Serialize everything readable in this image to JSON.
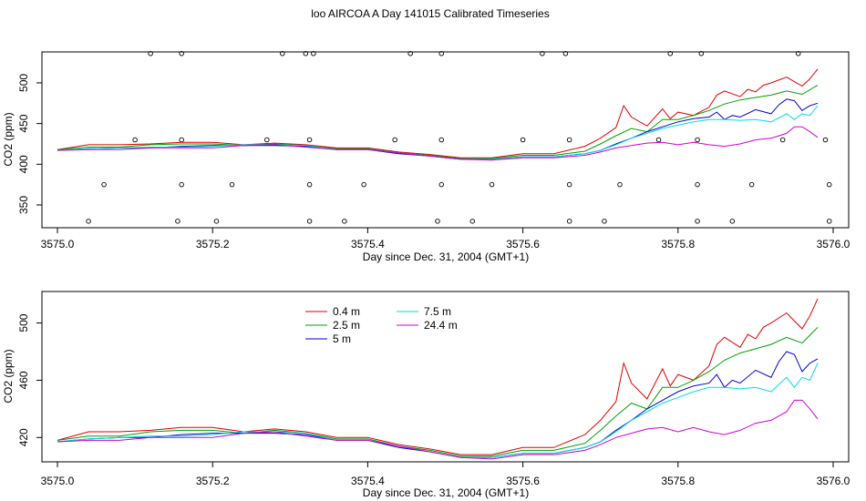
{
  "title": "loo AIRCOA A  Day 141015  Calibrated Timeseries",
  "colors": {
    "0.4 m": "#e00000",
    "2.5 m": "#00a000",
    "5 m": "#0000c8",
    "7.5 m": "#00dede",
    "24.4 m": "#d000d0"
  },
  "chart_data": [
    {
      "type": "line",
      "xlabel": "Day since Dec. 31, 2004 (GMT+1)",
      "ylabel": "CO2 (ppm)",
      "xlim": [
        3574.98,
        3576.02
      ],
      "ylim": [
        322,
        538
      ],
      "xticks": [
        "3575.0",
        "3575.2",
        "3575.4",
        "3575.6",
        "3575.8",
        "3576.0"
      ],
      "yticks": [
        "350",
        "400",
        "450",
        "500"
      ],
      "grid": false,
      "markers": {
        "x": [
          3575.04,
          3575.06,
          3575.1,
          3575.12,
          3575.155,
          3575.16,
          3575.16,
          3575.16,
          3575.205,
          3575.225,
          3575.27,
          3575.29,
          3575.32,
          3575.325,
          3575.325,
          3575.325,
          3575.33,
          3575.37,
          3575.395,
          3575.435,
          3575.455,
          3575.49,
          3575.495,
          3575.495,
          3575.495,
          3575.535,
          3575.56,
          3575.6,
          3575.625,
          3575.655,
          3575.66,
          3575.66,
          3575.66,
          3575.705,
          3575.725,
          3575.775,
          3575.79,
          3575.825,
          3575.825,
          3575.825,
          3575.83,
          3575.87,
          3575.895,
          3575.935,
          3575.955,
          3575.99,
          3575.995,
          3575.995
        ],
        "y": [
          330,
          375,
          430,
          536,
          330,
          375,
          430,
          536,
          330,
          375,
          430,
          536,
          536,
          430,
          375,
          330,
          536,
          330,
          375,
          430,
          536,
          330,
          375,
          430,
          536,
          330,
          375,
          430,
          536,
          536,
          430,
          375,
          330,
          330,
          375,
          430,
          536,
          330,
          375,
          430,
          536,
          330,
          375,
          430,
          536,
          430,
          375,
          330
        ]
      }
    },
    {
      "type": "line",
      "xlabel": "Day since Dec. 31, 2004 (GMT+1)",
      "ylabel": "CO2 (ppm)",
      "xlim": [
        3574.98,
        3576.02
      ],
      "ylim": [
        403,
        522
      ],
      "xticks": [
        "3575.0",
        "3575.2",
        "3575.4",
        "3575.6",
        "3575.8",
        "3576.0"
      ],
      "yticks": [
        "420",
        "460",
        "500"
      ],
      "grid": false,
      "legend_position": "top-left",
      "series": [
        {
          "name": "0.4 m",
          "x": [
            3575.0,
            3575.04,
            3575.08,
            3575.12,
            3575.16,
            3575.2,
            3575.24,
            3575.28,
            3575.32,
            3575.36,
            3575.4,
            3575.44,
            3575.48,
            3575.52,
            3575.56,
            3575.6,
            3575.64,
            3575.68,
            3575.7,
            3575.72,
            3575.73,
            3575.74,
            3575.76,
            3575.78,
            3575.79,
            3575.8,
            3575.82,
            3575.84,
            3575.85,
            3575.86,
            3575.88,
            3575.89,
            3575.9,
            3575.91,
            3575.92,
            3575.94,
            3575.96,
            3575.97,
            3575.98
          ],
          "y": [
            418,
            424,
            424,
            425,
            427,
            427,
            424,
            426,
            424,
            420,
            420,
            415,
            412,
            408,
            408,
            413,
            413,
            422,
            432,
            445,
            472,
            458,
            447,
            468,
            456,
            464,
            460,
            470,
            485,
            490,
            483,
            492,
            489,
            497,
            500,
            507,
            496,
            505,
            517
          ]
        },
        {
          "name": "2.5 m",
          "x": [
            3575.0,
            3575.04,
            3575.08,
            3575.12,
            3575.16,
            3575.2,
            3575.24,
            3575.28,
            3575.32,
            3575.36,
            3575.4,
            3575.44,
            3575.48,
            3575.52,
            3575.56,
            3575.6,
            3575.64,
            3575.68,
            3575.7,
            3575.72,
            3575.74,
            3575.76,
            3575.78,
            3575.8,
            3575.82,
            3575.84,
            3575.86,
            3575.88,
            3575.9,
            3575.92,
            3575.94,
            3575.96,
            3575.98
          ],
          "y": [
            418,
            421,
            421,
            424,
            425,
            425,
            423,
            425,
            423,
            419,
            419,
            414,
            411,
            407,
            407,
            411,
            411,
            416,
            425,
            435,
            444,
            440,
            455,
            455,
            460,
            466,
            474,
            479,
            482,
            485,
            490,
            486,
            497
          ]
        },
        {
          "name": "5 m",
          "x": [
            3575.0,
            3575.04,
            3575.08,
            3575.12,
            3575.16,
            3575.2,
            3575.24,
            3575.28,
            3575.32,
            3575.36,
            3575.4,
            3575.44,
            3575.48,
            3575.52,
            3575.56,
            3575.6,
            3575.64,
            3575.68,
            3575.7,
            3575.72,
            3575.74,
            3575.76,
            3575.78,
            3575.8,
            3575.82,
            3575.84,
            3575.85,
            3575.86,
            3575.87,
            3575.88,
            3575.9,
            3575.92,
            3575.93,
            3575.94,
            3575.95,
            3575.96,
            3575.97,
            3575.98
          ],
          "y": [
            417,
            419,
            420,
            420,
            422,
            423,
            423,
            423,
            422,
            418,
            418,
            413,
            410,
            406,
            406,
            409,
            409,
            413,
            417,
            425,
            432,
            440,
            446,
            452,
            456,
            458,
            464,
            455,
            460,
            458,
            467,
            462,
            473,
            480,
            478,
            466,
            472,
            475
          ]
        },
        {
          "name": "7.5 m",
          "x": [
            3575.0,
            3575.04,
            3575.08,
            3575.12,
            3575.16,
            3575.2,
            3575.24,
            3575.28,
            3575.32,
            3575.36,
            3575.4,
            3575.44,
            3575.48,
            3575.52,
            3575.56,
            3575.6,
            3575.64,
            3575.68,
            3575.7,
            3575.72,
            3575.74,
            3575.76,
            3575.78,
            3575.8,
            3575.82,
            3575.84,
            3575.86,
            3575.88,
            3575.9,
            3575.92,
            3575.94,
            3575.95,
            3575.96,
            3575.97,
            3575.98
          ],
          "y": [
            417,
            419,
            420,
            421,
            421,
            422,
            424,
            424,
            423,
            418,
            418,
            414,
            410,
            406,
            406,
            409,
            409,
            413,
            417,
            424,
            432,
            438,
            444,
            448,
            452,
            455,
            455,
            454,
            455,
            452,
            462,
            455,
            462,
            460,
            472
          ]
        },
        {
          "name": "24.4 m",
          "x": [
            3575.0,
            3575.04,
            3575.08,
            3575.12,
            3575.16,
            3575.2,
            3575.24,
            3575.28,
            3575.32,
            3575.36,
            3575.4,
            3575.44,
            3575.48,
            3575.52,
            3575.56,
            3575.6,
            3575.64,
            3575.68,
            3575.7,
            3575.72,
            3575.74,
            3575.76,
            3575.78,
            3575.8,
            3575.82,
            3575.84,
            3575.86,
            3575.88,
            3575.9,
            3575.92,
            3575.94,
            3575.95,
            3575.96,
            3575.97,
            3575.98
          ],
          "y": [
            417,
            418,
            418,
            420,
            420,
            420,
            423,
            424,
            421,
            418,
            418,
            414,
            410,
            406,
            405,
            408,
            408,
            411,
            415,
            420,
            423,
            426,
            427,
            424,
            427,
            424,
            422,
            425,
            430,
            432,
            438,
            446,
            446,
            440,
            433
          ]
        }
      ]
    }
  ]
}
